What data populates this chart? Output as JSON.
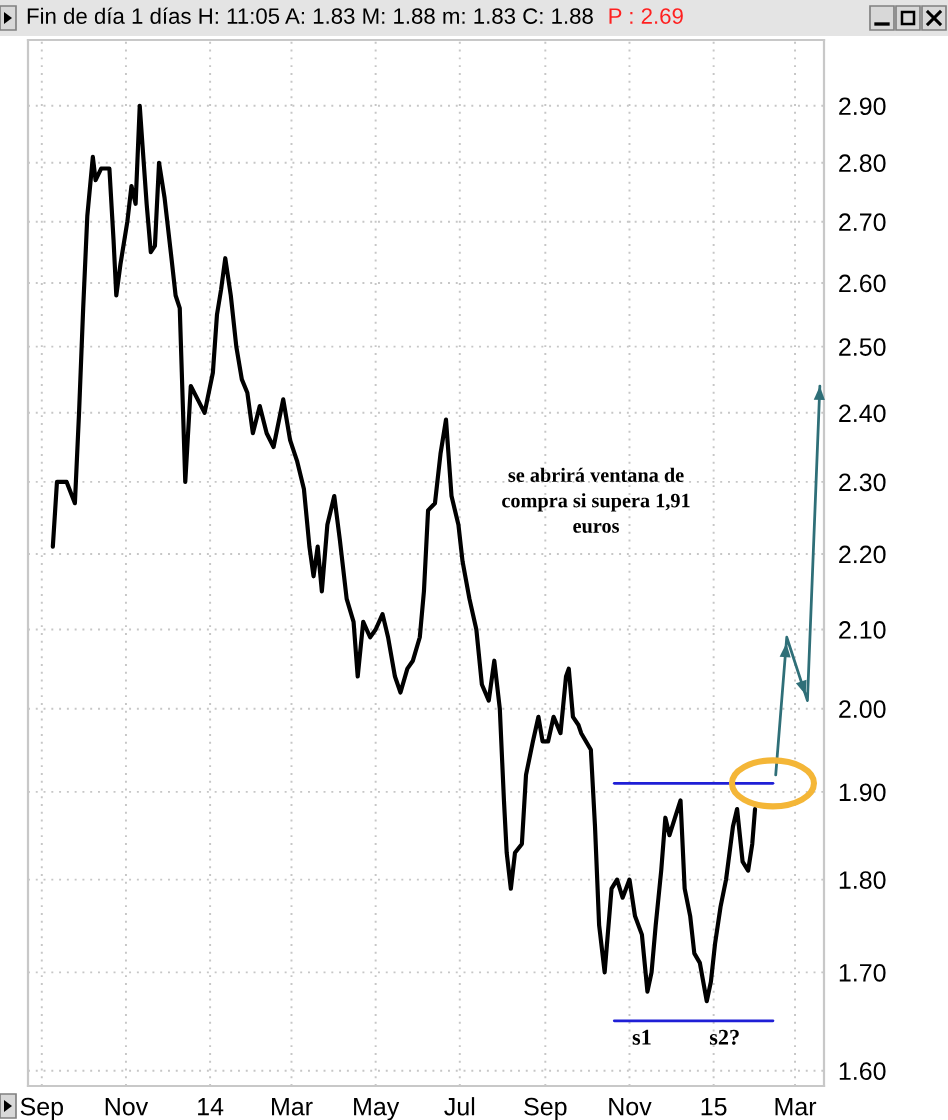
{
  "chart_data": {
    "type": "line",
    "title": "Fin de día 1 días H: 11:05 A: 1.83 M: 1.88 m: 1.83 C: 1.88",
    "subtitle": "P : 2.69",
    "annotations": [
      "se abrirá ventana de\ncompra si supera 1,91\neuros",
      {
        "text": "s1",
        "x": "2014-11-10",
        "y": 1.65
      },
      {
        "text": "s2?",
        "x": "2015-01-09",
        "y": 1.65
      }
    ],
    "series": [
      {
        "color": "#000000",
        "x": [
          "2013-09-09",
          "2013-09-12",
          "2013-09-19",
          "2013-09-25",
          "2013-09-28",
          "2013-10-01",
          "2013-10-04",
          "2013-10-08",
          "2013-10-10",
          "2013-10-14",
          "2013-10-20",
          "2013-10-23",
          "2013-10-25",
          "2013-10-28",
          "2013-11-02",
          "2013-11-05",
          "2013-11-08",
          "2013-11-11",
          "2013-11-13",
          "2013-11-16",
          "2013-11-19",
          "2013-11-22",
          "2013-11-25",
          "2013-11-29",
          "2013-12-04",
          "2013-12-07",
          "2013-12-10",
          "2013-12-14",
          "2013-12-18",
          "2013-12-23",
          "2013-12-28",
          "2014-01-03",
          "2014-01-06",
          "2014-01-09",
          "2014-01-12",
          "2014-01-16",
          "2014-01-20",
          "2014-01-24",
          "2014-01-28",
          "2014-02-01",
          "2014-02-06",
          "2014-02-11",
          "2014-02-16",
          "2014-02-23",
          "2014-02-28",
          "2014-03-05",
          "2014-03-10",
          "2014-03-14",
          "2014-03-17",
          "2014-03-20",
          "2014-03-23",
          "2014-03-27",
          "2014-04-01",
          "2014-04-05",
          "2014-04-10",
          "2014-04-15",
          "2014-04-18",
          "2014-04-22",
          "2014-04-27",
          "2014-05-01",
          "2014-05-06",
          "2014-05-10",
          "2014-05-15",
          "2014-05-19",
          "2014-05-24",
          "2014-05-28",
          "2014-06-02",
          "2014-06-05",
          "2014-06-08",
          "2014-06-13",
          "2014-06-17",
          "2014-06-21",
          "2014-06-25",
          "2014-06-30",
          "2014-07-03",
          "2014-07-08",
          "2014-07-13",
          "2014-07-17",
          "2014-07-22",
          "2014-07-26",
          "2014-07-30",
          "2014-08-02",
          "2014-08-04",
          "2014-08-07",
          "2014-08-10",
          "2014-08-15",
          "2014-08-18",
          "2014-08-23",
          "2014-08-27",
          "2014-08-30",
          "2014-09-03",
          "2014-09-07",
          "2014-09-12",
          "2014-09-16",
          "2014-09-18",
          "2014-09-21",
          "2014-09-25",
          "2014-09-27",
          "2014-10-04",
          "2014-10-07",
          "2014-10-10",
          "2014-10-14",
          "2014-10-19",
          "2014-10-23",
          "2014-10-27",
          "2014-11-01",
          "2014-11-05",
          "2014-11-10",
          "2014-11-14",
          "2014-11-17",
          "2014-11-20",
          "2014-11-24",
          "2014-11-27",
          "2014-11-30",
          "2014-12-04",
          "2014-12-08",
          "2014-12-11",
          "2014-12-15",
          "2014-12-18",
          "2014-12-22",
          "2014-12-27",
          "2014-12-30",
          "2015-01-02",
          "2015-01-06",
          "2015-01-10",
          "2015-01-15",
          "2015-01-18",
          "2015-01-22",
          "2015-01-26",
          "2015-01-29",
          "2015-01-31"
        ],
        "values": [
          2.21,
          2.3,
          2.3,
          2.27,
          2.4,
          2.56,
          2.71,
          2.81,
          2.77,
          2.79,
          2.79,
          2.67,
          2.58,
          2.63,
          2.7,
          2.76,
          2.73,
          2.9,
          2.83,
          2.73,
          2.65,
          2.66,
          2.8,
          2.74,
          2.64,
          2.58,
          2.56,
          2.3,
          2.44,
          2.42,
          2.4,
          2.46,
          2.55,
          2.59,
          2.64,
          2.58,
          2.5,
          2.45,
          2.43,
          2.37,
          2.41,
          2.37,
          2.35,
          2.42,
          2.36,
          2.33,
          2.29,
          2.21,
          2.17,
          2.21,
          2.15,
          2.24,
          2.28,
          2.22,
          2.14,
          2.11,
          2.04,
          2.11,
          2.09,
          2.1,
          2.12,
          2.09,
          2.04,
          2.02,
          2.05,
          2.06,
          2.09,
          2.15,
          2.26,
          2.27,
          2.34,
          2.39,
          2.28,
          2.24,
          2.19,
          2.14,
          2.1,
          2.03,
          2.01,
          2.06,
          2.0,
          1.89,
          1.83,
          1.79,
          1.83,
          1.84,
          1.92,
          1.96,
          1.99,
          1.96,
          1.96,
          1.99,
          1.97,
          2.04,
          2.05,
          1.99,
          1.98,
          1.97,
          1.95,
          1.86,
          1.75,
          1.7,
          1.79,
          1.8,
          1.78,
          1.8,
          1.76,
          1.74,
          1.68,
          1.7,
          1.75,
          1.81,
          1.87,
          1.85,
          1.87,
          1.89,
          1.79,
          1.76,
          1.72,
          1.71,
          1.67,
          1.69,
          1.73,
          1.77,
          1.8,
          1.86,
          1.88,
          1.82,
          1.81,
          1.84,
          1.88
        ]
      },
      {
        "color": "#1f1fd6",
        "x": [
          "2014-10-21",
          "2015-02-13"
        ],
        "values": [
          1.91,
          1.91
        ]
      },
      {
        "color": "#1f1fd6",
        "x": [
          "2014-10-21",
          "2015-02-13"
        ],
        "values": [
          1.65,
          1.65
        ]
      },
      {
        "color": "#2f6f78",
        "x": [
          "2015-02-15",
          "2015-02-23",
          "2015-03-10",
          "2015-03-19"
        ],
        "values": [
          1.92,
          2.09,
          2.01,
          2.44
        ]
      }
    ],
    "xlim": [
      "2013-08-22",
      "2015-03-22"
    ],
    "xticks": [
      {
        "value": "2013-09-01",
        "label": "Sep"
      },
      {
        "value": "2013-11-01",
        "label": "Nov"
      },
      {
        "value": "2014-01-01",
        "label": "14"
      },
      {
        "value": "2014-03-01",
        "label": "Mar"
      },
      {
        "value": "2014-05-01",
        "label": "May"
      },
      {
        "value": "2014-07-01",
        "label": "Jul"
      },
      {
        "value": "2014-09-01",
        "label": "Sep"
      },
      {
        "value": "2014-11-01",
        "label": "Nov"
      },
      {
        "value": "2015-01-01",
        "label": "15"
      },
      {
        "value": "2015-03-01",
        "label": "Mar"
      }
    ],
    "ylim": [
      1.585,
      3.02
    ],
    "yticks": [
      {
        "value": 1.6,
        "label": "1.60"
      },
      {
        "value": 1.7,
        "label": "1.70"
      },
      {
        "value": 1.8,
        "label": "1.80"
      },
      {
        "value": 1.9,
        "label": "1.90"
      },
      {
        "value": 2.0,
        "label": "2.00"
      },
      {
        "value": 2.1,
        "label": "2.10"
      },
      {
        "value": 2.2,
        "label": "2.20"
      },
      {
        "value": 2.3,
        "label": "2.30"
      },
      {
        "value": 2.4,
        "label": "2.40"
      },
      {
        "value": 2.5,
        "label": "2.50"
      },
      {
        "value": 2.6,
        "label": "2.60"
      },
      {
        "value": 2.7,
        "label": "2.70"
      },
      {
        "value": 2.8,
        "label": "2.80"
      },
      {
        "value": 2.9,
        "label": "2.90"
      }
    ],
    "log": true,
    "grid": true
  }
}
